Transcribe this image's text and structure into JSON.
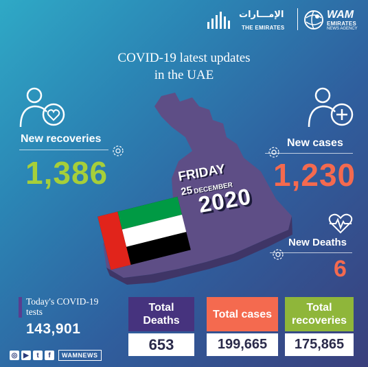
{
  "header": {
    "emirates_logo_ar": "الإمـــارات",
    "emirates_logo_en": "THE EMIRATES",
    "wam_logo_main": "WAM",
    "wam_logo_sub1": "EMIRATES",
    "wam_logo_sub2": "NEWS AGENCY"
  },
  "title": {
    "line1": "COVID-19 latest updates",
    "line2": "in the UAE"
  },
  "date": {
    "day": "FRIDAY",
    "day_num": "25",
    "month": "DECEMBER",
    "year": "2020"
  },
  "new_recoveries": {
    "label": "New recoveries",
    "value": "1,386",
    "icon": "person-heart-icon"
  },
  "new_cases": {
    "label": "New cases",
    "value": "1,230",
    "icon": "person-plus-icon"
  },
  "new_deaths": {
    "label": "New Deaths",
    "value": "6",
    "icon": "heartbeat-icon"
  },
  "tests": {
    "label": "Today's COVID-19 tests",
    "value": "143,901"
  },
  "totals": {
    "deaths": {
      "label": "Total Deaths",
      "value": "653"
    },
    "cases": {
      "label": "Total cases",
      "value": "199,665"
    },
    "recoveries": {
      "label": "Total recoveries",
      "value": "175,865"
    }
  },
  "social": {
    "handle": "WAMNEWS",
    "icons": [
      "instagram-icon",
      "youtube-icon",
      "twitter-icon",
      "facebook-icon"
    ]
  },
  "colors": {
    "recoveries": "#a6cf3a",
    "cases": "#f46a4f",
    "deaths_box": "#46337e",
    "map": "#5e4e86",
    "flag_green": "#009a44",
    "flag_red": "#e1241b"
  }
}
